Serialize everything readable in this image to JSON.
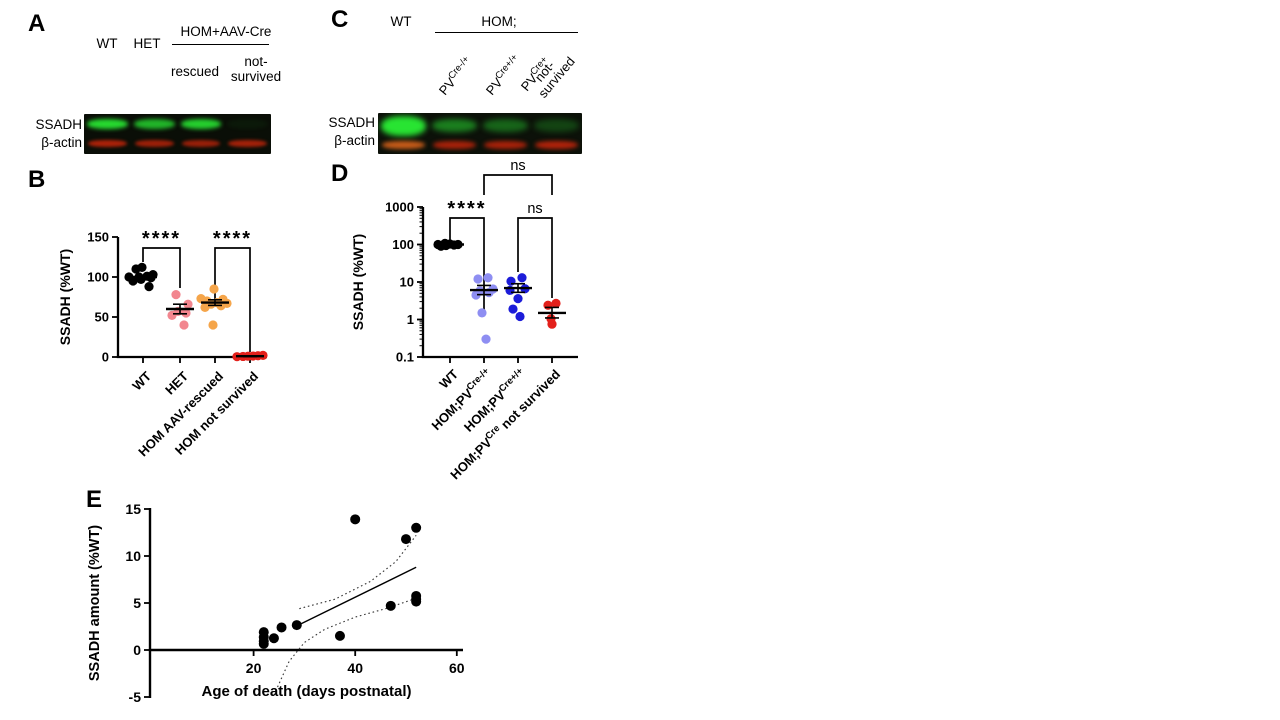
{
  "panels": {
    "a": {
      "label": "A",
      "row_labels": [
        "SSADH",
        "β-actin"
      ],
      "headers": {
        "wt": "WT",
        "het": "HET",
        "hom": "HOM+AAV-Cre",
        "rescued": "rescued",
        "not_survived": "not-\nsurvived"
      },
      "blot_lanes": [
        {
          "g": 0.95,
          "r": 0.82
        },
        {
          "g": 0.78,
          "r": 0.75
        },
        {
          "g": 0.9,
          "r": 0.72
        },
        {
          "g": 0.05,
          "r": 0.78
        }
      ]
    },
    "b": {
      "label": "B"
    },
    "c": {
      "label": "C",
      "row_labels": [
        "SSADH",
        "β-actin"
      ],
      "headers": {
        "wt": "WT",
        "hom": "HOM;"
      },
      "lane_labels": [
        "PV^{Cre-/+}",
        "PV^{Cre+/+}",
        "PV^{Cre+}"
      ],
      "lane_label_last": [
        "not-",
        "survived"
      ],
      "blot_lanes": [
        {
          "g": 1,
          "r": 0.92,
          "rc": [
            214,
            98,
            26
          ],
          "gh": 20,
          "gt": 3
        },
        {
          "g": 0.52,
          "r": 0.8
        },
        {
          "g": 0.4,
          "r": 0.8
        },
        {
          "g": 0.24,
          "r": 0.85
        }
      ]
    },
    "d": {
      "label": "D"
    },
    "e": {
      "label": "E"
    }
  },
  "chart_data": [
    {
      "id": "B",
      "type": "scatter",
      "title": "",
      "ylabel": "SSADH (%WT)",
      "ylim": [
        0,
        150
      ],
      "yticks": [
        0,
        50,
        100,
        150
      ],
      "categories": [
        "WT",
        "HET",
        "HOM AAV-rescued",
        "HOM not survived"
      ],
      "series": [
        {
          "name": "WT",
          "color": "#000000",
          "values": [
            88,
            95,
            97,
            99,
            100,
            100,
            101,
            103,
            110,
            112
          ],
          "jitter": [
            6,
            -10,
            -2,
            8,
            -14,
            -4,
            4,
            10,
            -7,
            -1
          ],
          "mean": 100,
          "err": [
            98.5,
            101.5
          ]
        },
        {
          "name": "HET",
          "color": "#f2868f",
          "values": [
            40,
            52,
            55,
            57,
            66,
            78
          ],
          "jitter": [
            4,
            -8,
            6,
            -2,
            8,
            -4
          ],
          "mean": 60,
          "err": [
            54,
            66
          ]
        },
        {
          "name": "HOM AAV-rescued",
          "color": "#f5a54a",
          "values": [
            40,
            62,
            64,
            66,
            67,
            68,
            70,
            72,
            73,
            85
          ],
          "jitter": [
            -2,
            -10,
            6,
            -4,
            12,
            2,
            -8,
            8,
            -14,
            -1
          ],
          "mean": 68,
          "err": [
            64.5,
            71.5
          ]
        },
        {
          "name": "HOM not survived",
          "color": "#e3201b",
          "values": [
            0.4,
            0.7,
            1,
            1.2,
            1.6,
            2
          ],
          "jitter": [
            -13,
            -7,
            -2,
            3,
            8,
            13
          ],
          "mean": 1,
          "err": [
            0.6,
            1.5
          ]
        }
      ],
      "significance": [
        {
          "a": 0,
          "b": 1,
          "label": "****"
        },
        {
          "a": 2,
          "b": 3,
          "label": "****"
        }
      ]
    },
    {
      "id": "D",
      "type": "scatter",
      "yscale": "log",
      "ylabel": "SSADH (%WT)",
      "ylim": [
        0.1,
        1000
      ],
      "yticks": [
        0.1,
        1,
        10,
        100,
        1000
      ],
      "categories": [
        "WT",
        "HOM;PV^{Cre-/+}",
        "HOM;PV^{Cre+/+}",
        "HOM;PV^{Cre} not survived"
      ],
      "series": [
        {
          "name": "WT",
          "color": "#000000",
          "values": [
            90,
            94,
            97,
            100,
            100,
            103,
            107
          ],
          "jitter": [
            -9,
            -4,
            4,
            -12,
            8,
            0,
            -5
          ],
          "mean": 100,
          "err": [
            97,
            103
          ]
        },
        {
          "name": "HOM;PV Cre-/+",
          "color": "#8e8ef2",
          "values": [
            0.3,
            1.5,
            4.5,
            5.2,
            5.8,
            6.5,
            12,
            13
          ],
          "jitter": [
            2,
            -2,
            -8,
            5,
            -4,
            9,
            -6,
            4
          ],
          "mean": 6.1,
          "err": [
            4.6,
            8.1
          ]
        },
        {
          "name": "HOM;PV Cre+/+",
          "color": "#1c1cd9",
          "values": [
            1.2,
            1.9,
            3.6,
            6,
            6.6,
            10.5,
            13
          ],
          "jitter": [
            2,
            -5,
            0,
            -8,
            7,
            -7,
            4
          ],
          "mean": 6.9,
          "err": [
            5.3,
            9
          ]
        },
        {
          "name": "HOM;PV Cre not survived",
          "color": "#e3201b",
          "values": [
            0.75,
            1.05,
            2.4,
            2.7
          ],
          "jitter": [
            0,
            -1,
            -4,
            4
          ],
          "mean": 1.5,
          "err": [
            1.1,
            2.1
          ]
        }
      ],
      "significance": [
        {
          "a": 0,
          "b": 1,
          "label": "****"
        },
        {
          "a": 2,
          "b": 3,
          "label": "ns"
        },
        {
          "a": 1,
          "b": 3,
          "label": "ns",
          "level": 2
        }
      ]
    },
    {
      "id": "E",
      "type": "scatter",
      "xlabel": "Age of death (days postnatal)",
      "ylabel": "SSADH amount (%WT)",
      "xlim": [
        0,
        60
      ],
      "xticks": [
        20,
        40,
        60
      ],
      "ylim": [
        -5,
        15
      ],
      "yticks": [
        -5,
        0,
        5,
        10,
        15
      ],
      "points": [
        [
          22,
          0.65
        ],
        [
          22,
          0.95
        ],
        [
          22,
          1.35
        ],
        [
          22,
          1.9
        ],
        [
          24,
          1.25
        ],
        [
          25.5,
          2.4
        ],
        [
          28.5,
          2.65
        ],
        [
          37,
          1.5
        ],
        [
          40,
          13.9
        ],
        [
          47,
          4.7
        ],
        [
          50,
          11.8
        ],
        [
          52,
          5.15
        ],
        [
          52,
          5.4
        ],
        [
          52,
          5.75
        ],
        [
          52,
          13.0
        ]
      ],
      "regression": [
        [
          29,
          2.7
        ],
        [
          52,
          8.8
        ]
      ],
      "ci_upper": [
        [
          29,
          4.4
        ],
        [
          36,
          5.4
        ],
        [
          43,
          7.3
        ],
        [
          48,
          9.4
        ],
        [
          52,
          12.2
        ]
      ],
      "ci_lower": [
        [
          24,
          -4.8
        ],
        [
          27,
          -1.2
        ],
        [
          30,
          0.8
        ],
        [
          34,
          2.2
        ],
        [
          40,
          3.5
        ],
        [
          46,
          4.4
        ],
        [
          52,
          5.5
        ]
      ]
    }
  ]
}
